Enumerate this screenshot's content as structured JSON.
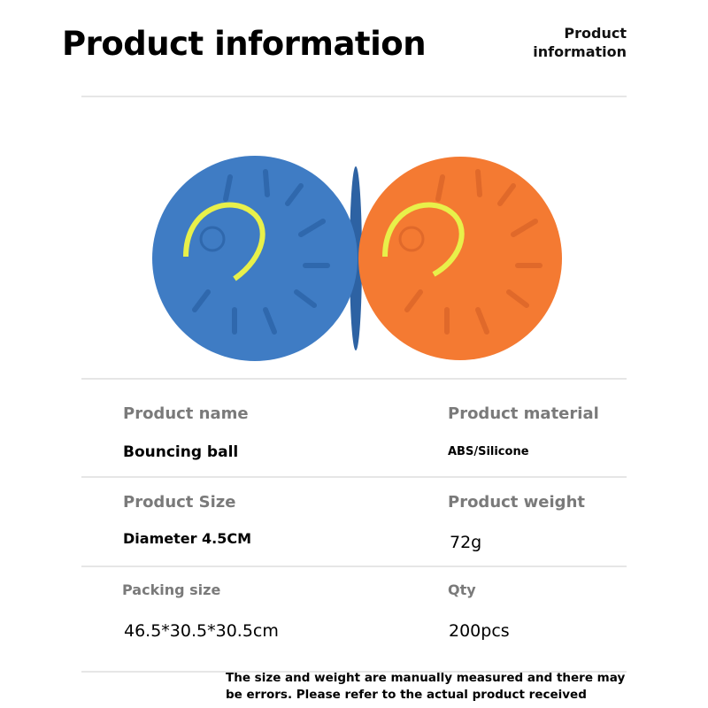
{
  "header": {
    "title": "Product information",
    "corner_label": "Product information"
  },
  "balls": [
    {
      "color": "#3f7cc4",
      "glow": "#e8f04a",
      "name": "blue-ball"
    },
    {
      "color": "#f47a32",
      "glow": "#e8f04a",
      "name": "orange-ball"
    }
  ],
  "specs": [
    {
      "label": "Product name",
      "value": "Bouncing ball"
    },
    {
      "label": "Product material",
      "value": "ABS/Silicone"
    },
    {
      "label": "Product Size",
      "value": "Diameter 4.5CM"
    },
    {
      "label": "Product weight",
      "value": "72g"
    },
    {
      "label": "Packing size",
      "value": "46.5*30.5*30.5cm"
    },
    {
      "label": "Qty",
      "value": "200pcs"
    }
  ],
  "note": "The size and weight are manually measured and there may be errors. Please refer to the actual product received"
}
